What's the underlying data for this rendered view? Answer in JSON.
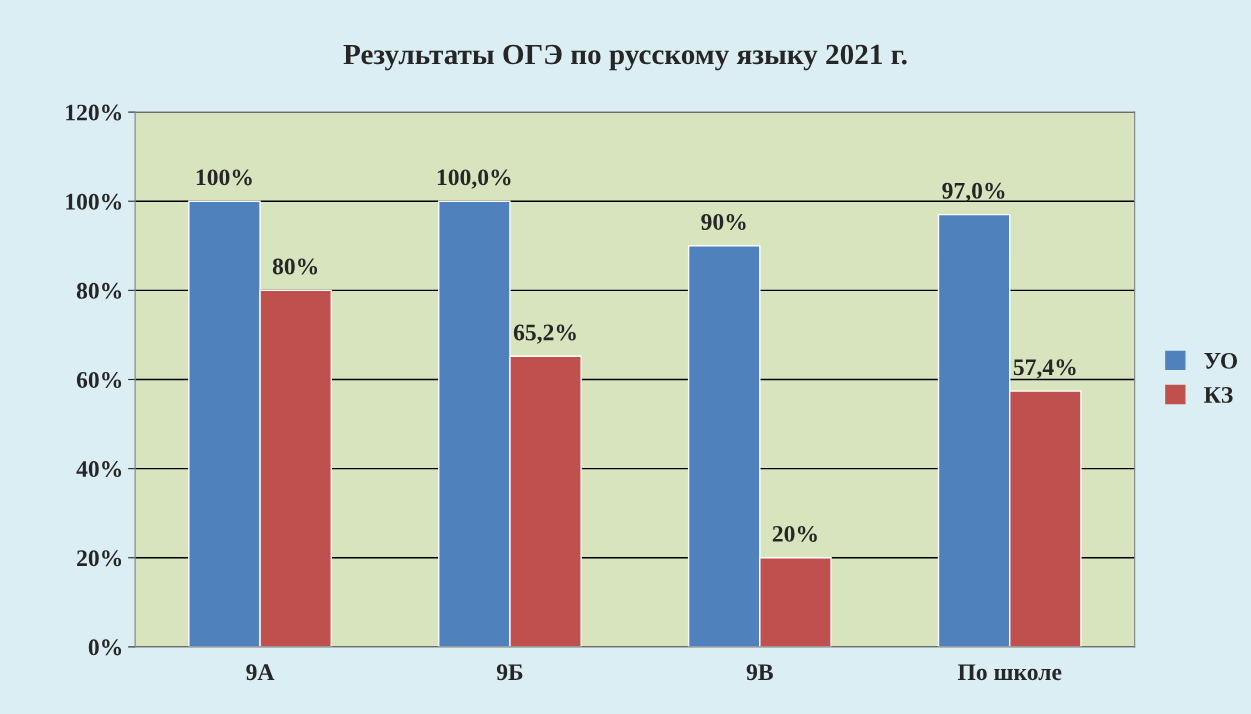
{
  "chart_data": {
    "type": "bar",
    "title": "Результаты ОГЭ по русскому языку 2021 г.",
    "categories": [
      "9А",
      "9Б",
      "9В",
      "По школе"
    ],
    "series": [
      {
        "name": "УО",
        "color": "#4f81bd",
        "values": [
          100,
          100.0,
          90,
          97.0
        ],
        "value_labels": [
          "100%",
          "100,0%",
          "90%",
          "97,0%"
        ]
      },
      {
        "name": "КЗ",
        "color": "#c0504d",
        "values": [
          80,
          65.2,
          20,
          57.4
        ],
        "value_labels": [
          "80%",
          "65,2%",
          "20%",
          "57,4%"
        ]
      }
    ],
    "ylim": [
      0,
      120
    ],
    "yticks": [
      {
        "value": 0,
        "label": "0%"
      },
      {
        "value": 20,
        "label": "20%"
      },
      {
        "value": 40,
        "label": "40%"
      },
      {
        "value": 60,
        "label": "60%"
      },
      {
        "value": 80,
        "label": "80%"
      },
      {
        "value": 100,
        "label": "100%"
      },
      {
        "value": 120,
        "label": "120%"
      }
    ],
    "grid": "y",
    "legend": "right"
  }
}
